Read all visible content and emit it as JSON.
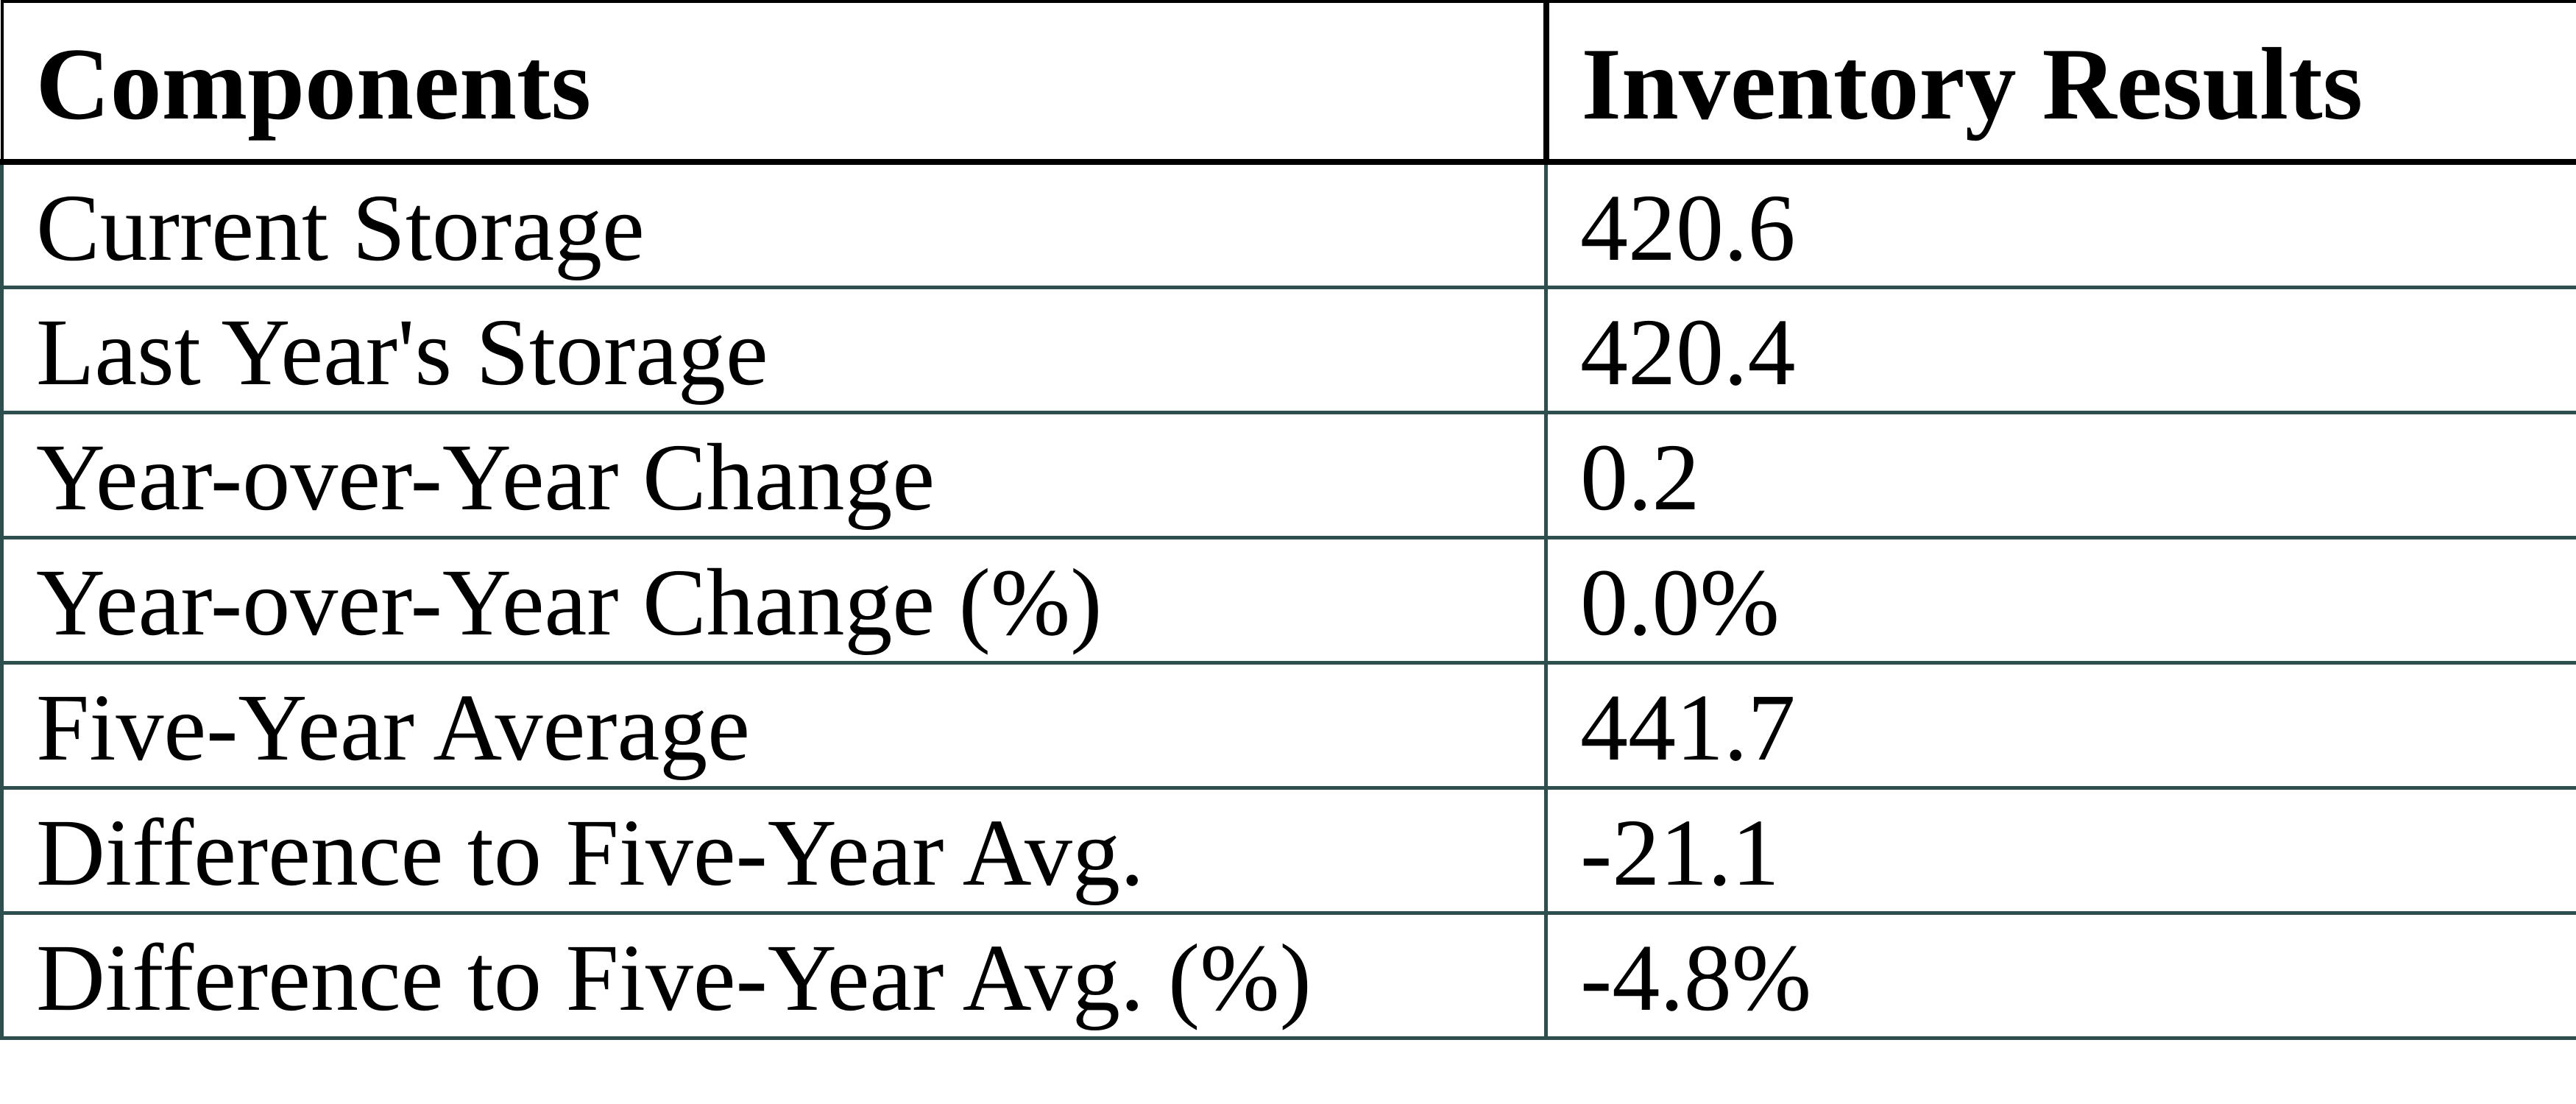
{
  "chart_data": {
    "type": "table",
    "columns": [
      "Components",
      "Inventory Results"
    ],
    "rows": [
      [
        "Current Storage",
        "420.6"
      ],
      [
        "Last Year's Storage",
        "420.4"
      ],
      [
        "Year-over-Year Change",
        "0.2"
      ],
      [
        "Year-over-Year Change (%)",
        "0.0%"
      ],
      [
        "Five-Year Average",
        "441.7"
      ],
      [
        "Difference to Five-Year Avg.",
        "-21.1"
      ],
      [
        "Difference to Five-Year Avg. (%)",
        "-4.8%"
      ]
    ],
    "colors": {
      "header_border": "#000000",
      "body_border": "#2F4F4F",
      "text": "#000000",
      "background": "#FFFFFF"
    }
  }
}
